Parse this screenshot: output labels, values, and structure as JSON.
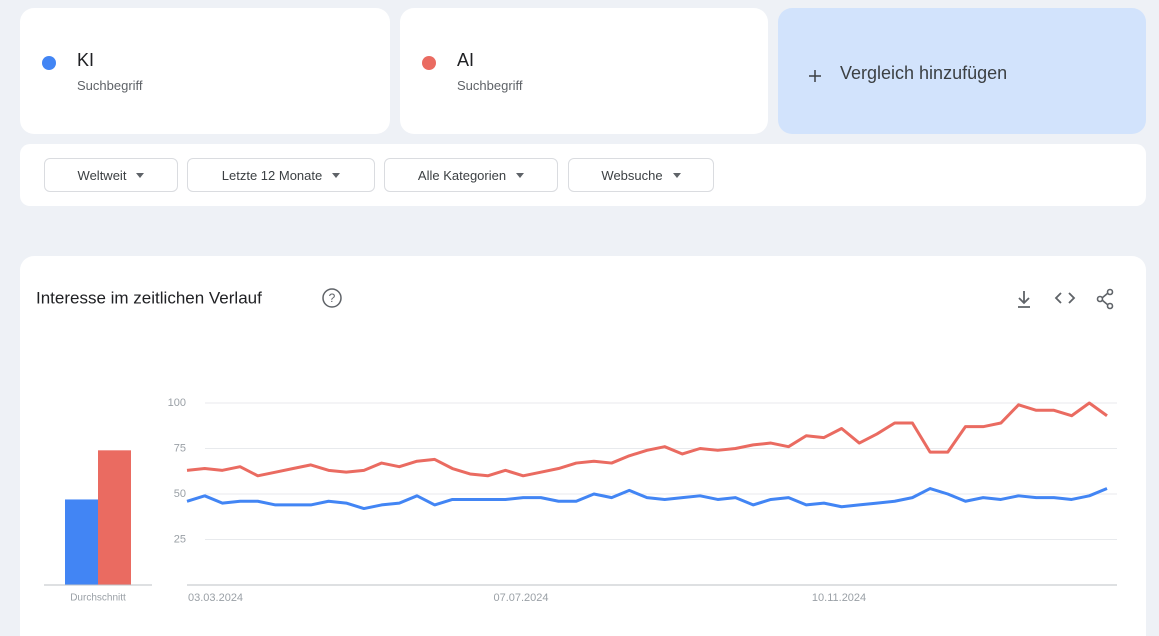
{
  "cards": [
    {
      "subtitle": "Suchbegriff"
    },
    {
      "subtitle": "Suchbegriff"
    }
  ],
  "add_compare": "Vergleich hinzufügen",
  "filters": [
    "Weltweit",
    "Letzte 12 Monate",
    "Alle Kategorien",
    "Websuche"
  ],
  "chart_data": {
    "type": "line",
    "title": "Interesse im zeitlichen Verlauf",
    "average_label": "Durchschnitt",
    "categories": [
      "03.03.2024",
      null,
      null,
      null,
      null,
      null,
      null,
      null,
      null,
      null,
      null,
      null,
      null,
      null,
      null,
      null,
      null,
      null,
      "07.07.2024",
      null,
      null,
      null,
      null,
      null,
      null,
      null,
      null,
      null,
      null,
      null,
      null,
      null,
      null,
      null,
      null,
      null,
      "10.11.2024",
      null,
      null,
      null,
      null,
      null,
      null,
      null,
      null,
      null,
      null,
      null,
      null,
      null,
      null,
      null,
      null
    ],
    "series": [
      {
        "name": "KI",
        "color": "#4285f4",
        "average": 47,
        "values": [
          46,
          49,
          45,
          46,
          46,
          44,
          44,
          44,
          46,
          45,
          42,
          44,
          45,
          49,
          44,
          47,
          47,
          47,
          47,
          48,
          48,
          46,
          46,
          50,
          48,
          52,
          48,
          47,
          48,
          49,
          47,
          48,
          44,
          47,
          48,
          44,
          45,
          43,
          44,
          45,
          46,
          48,
          53,
          50,
          46,
          48,
          47,
          49,
          48,
          48,
          47,
          49,
          53
        ]
      },
      {
        "name": "AI",
        "color": "#ea6b61",
        "average": 74,
        "values": [
          63,
          64,
          63,
          65,
          60,
          62,
          64,
          66,
          63,
          62,
          63,
          67,
          65,
          68,
          69,
          64,
          61,
          60,
          63,
          60,
          62,
          64,
          67,
          68,
          67,
          71,
          74,
          76,
          72,
          75,
          74,
          75,
          77,
          78,
          76,
          82,
          81,
          86,
          78,
          83,
          89,
          89,
          73,
          73,
          87,
          87,
          89,
          99,
          96,
          96,
          93,
          100,
          93
        ]
      }
    ],
    "ylim": [
      0,
      100
    ],
    "yticks": [
      25,
      50,
      75,
      100
    ],
    "grid": true
  }
}
